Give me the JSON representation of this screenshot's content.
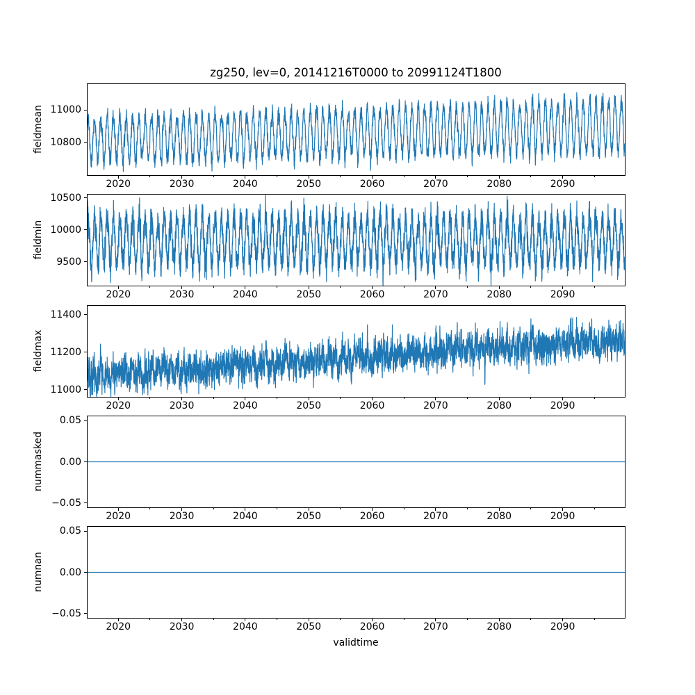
{
  "figure": {
    "title": "zg250, lev=0, 20141216T0000 to 20991124T1800",
    "xlabel": "validtime",
    "line_color": "#1f77b4",
    "axis_color": "#000000",
    "background": "#ffffff",
    "xlim": [
      2015.05,
      2099.9
    ],
    "xticks": [
      {
        "v": 2020,
        "label": "2020"
      },
      {
        "v": 2030,
        "label": "2030"
      },
      {
        "v": 2040,
        "label": "2040"
      },
      {
        "v": 2050,
        "label": "2050"
      },
      {
        "v": 2060,
        "label": "2060"
      },
      {
        "v": 2070,
        "label": "2070"
      },
      {
        "v": 2080,
        "label": "2080"
      },
      {
        "v": 2090,
        "label": "2090"
      }
    ],
    "xminor": [
      2015,
      2025,
      2035,
      2045,
      2055,
      2065,
      2075,
      2085,
      2095
    ]
  },
  "chart_data": [
    {
      "type": "line",
      "ylabel": "fieldmean",
      "ylim": [
        10597,
        11162
      ],
      "yticks": [
        {
          "v": 10800,
          "label": "10800"
        },
        {
          "v": 11000,
          "label": "11000"
        }
      ],
      "x_start": 2014.96,
      "x_end": 2099.9,
      "series": [
        {
          "name": "fieldmean",
          "color": "#1f77b4",
          "gen": {
            "kind": "seasonal-noise",
            "points_per_year": 45,
            "base_start": 10815,
            "base_end": 10905,
            "season_amp_start": 130,
            "season_amp_end": 160,
            "noise_sd": 26,
            "noise_ar": 0.3,
            "seed": 11
          }
        }
      ]
    },
    {
      "type": "line",
      "ylabel": "fieldmin",
      "ylim": [
        9118,
        10562
      ],
      "yticks": [
        {
          "v": 9500,
          "label": "9500"
        },
        {
          "v": 10000,
          "label": "10000"
        },
        {
          "v": 10500,
          "label": "10500"
        }
      ],
      "x_start": 2014.96,
      "x_end": 2099.9,
      "series": [
        {
          "name": "fieldmin",
          "color": "#1f77b4",
          "gen": {
            "kind": "seasonal-noise",
            "points_per_year": 60,
            "base_start": 9830,
            "base_end": 9830,
            "season_amp_start": 360,
            "season_amp_end": 360,
            "noise_sd": 110,
            "noise_ar": 0.3,
            "seed": 22
          }
        }
      ]
    },
    {
      "type": "line",
      "ylabel": "fieldmax",
      "ylim": [
        10958,
        11450
      ],
      "yticks": [
        {
          "v": 11000,
          "label": "11000"
        },
        {
          "v": 11200,
          "label": "11200"
        },
        {
          "v": 11400,
          "label": "11400"
        }
      ],
      "x_start": 2014.96,
      "x_end": 2099.9,
      "series": [
        {
          "name": "fieldmax",
          "color": "#1f77b4",
          "gen": {
            "kind": "seasonal-noise",
            "points_per_year": 70,
            "base_start": 11070,
            "base_end": 11270,
            "season_amp_start": 22,
            "season_amp_end": 22,
            "noise_sd": 36,
            "noise_ar": 0.6,
            "seed": 33
          }
        }
      ]
    },
    {
      "type": "line",
      "ylabel": "nummasked",
      "ylim": [
        -0.0563,
        0.0563
      ],
      "yticks": [
        {
          "v": -0.05,
          "label": "−0.05"
        },
        {
          "v": 0.0,
          "label": "0.00"
        },
        {
          "v": 0.05,
          "label": "0.05"
        }
      ],
      "x_start": 2014.96,
      "x_end": 2099.9,
      "series": [
        {
          "name": "nummasked",
          "color": "#1f77b4",
          "gen": {
            "kind": "flat",
            "value": 0.0
          }
        }
      ]
    },
    {
      "type": "line",
      "ylabel": "numnan",
      "ylim": [
        -0.0563,
        0.0563
      ],
      "yticks": [
        {
          "v": -0.05,
          "label": "−0.05"
        },
        {
          "v": 0.0,
          "label": "0.00"
        },
        {
          "v": 0.05,
          "label": "0.05"
        }
      ],
      "x_start": 2014.96,
      "x_end": 2099.9,
      "series": [
        {
          "name": "numnan",
          "color": "#1f77b4",
          "gen": {
            "kind": "flat",
            "value": 0.0
          }
        }
      ]
    }
  ]
}
